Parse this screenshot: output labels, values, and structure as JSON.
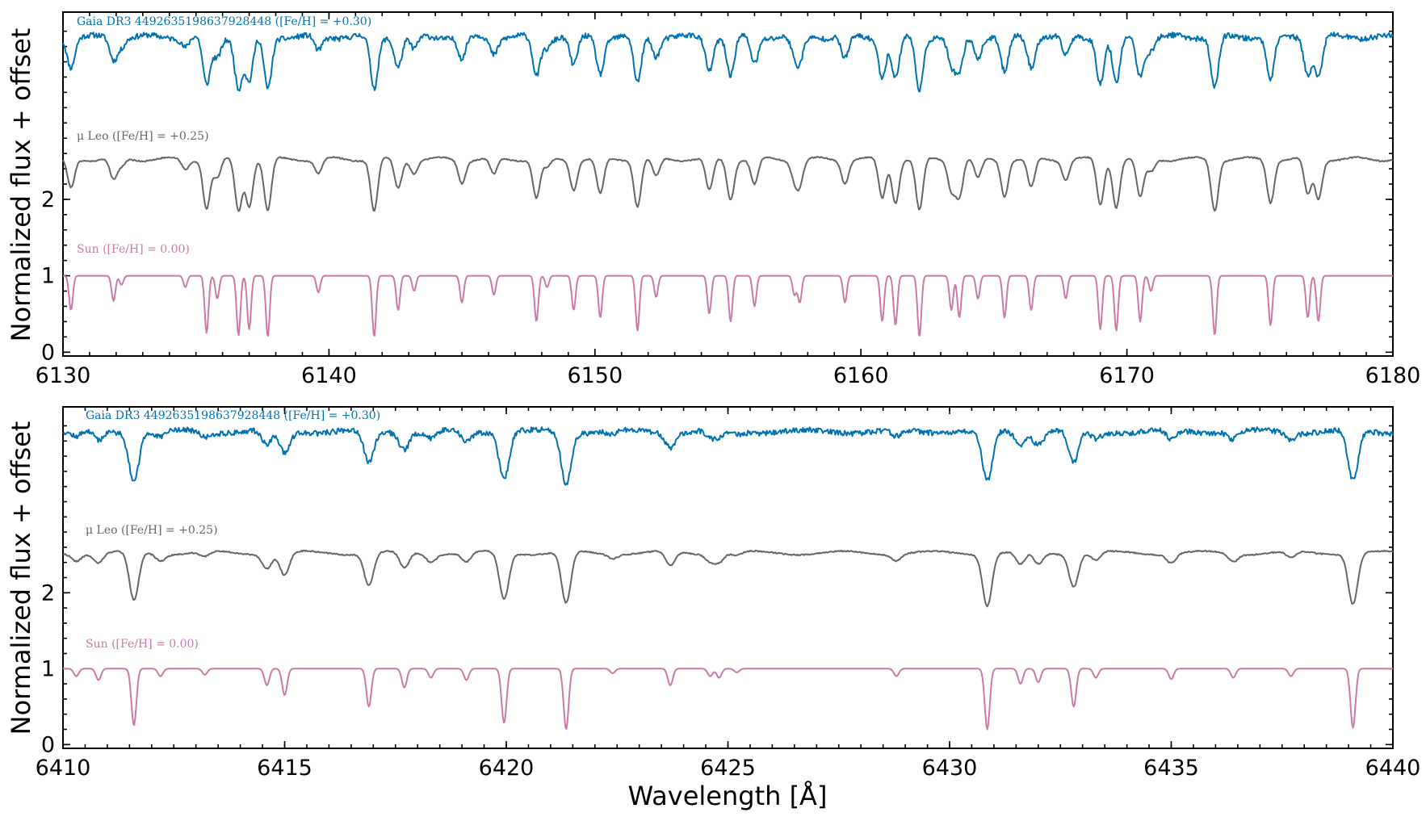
{
  "chart_data": [
    {
      "type": "line",
      "title": "",
      "xlabel": "",
      "ylabel": "Normalized flux + offset",
      "xlim": [
        6130,
        6180
      ],
      "ylim": [
        -0.05,
        4.45
      ],
      "xticks": [
        6130,
        6140,
        6150,
        6160,
        6170,
        6180
      ],
      "xtick_labels": [
        "6130",
        "6140",
        "6150",
        "6160",
        "6170",
        "6180"
      ],
      "yticks": [
        0,
        1,
        2
      ],
      "ytick_labels": [
        "0",
        "1",
        "2"
      ],
      "grid": false,
      "legend": "none",
      "series": [
        {
          "name": "Gaia DR3 4492635198637928448 ([Fe/H] = +0.30)",
          "color": "#0072b2",
          "offset": 3.0,
          "lines": [
            [
              6130.3,
              0.2
            ],
            [
              6131.9,
              0.18
            ],
            [
              6135.4,
              0.38
            ],
            [
              6136.6,
              0.52
            ],
            [
              6137.0,
              0.43
            ],
            [
              6137.7,
              0.52
            ],
            [
              6139.6,
              0.2
            ],
            [
              6141.7,
              0.45
            ],
            [
              6142.6,
              0.22
            ],
            [
              6143.2,
              0.25
            ],
            [
              6145.0,
              0.2
            ],
            [
              6146.2,
              0.2
            ],
            [
              6147.8,
              0.32
            ],
            [
              6149.2,
              0.2
            ],
            [
              6150.2,
              0.4
            ],
            [
              6151.6,
              0.42
            ],
            [
              6154.3,
              0.38
            ],
            [
              6155.1,
              0.32
            ],
            [
              6156.0,
              0.33
            ],
            [
              6157.5,
              0.2
            ],
            [
              6159.4,
              0.2
            ],
            [
              6160.8,
              0.35
            ],
            [
              6161.3,
              0.38
            ],
            [
              6162.2,
              0.53
            ],
            [
              6163.4,
              0.25
            ],
            [
              6163.7,
              0.4
            ],
            [
              6165.4,
              0.33
            ],
            [
              6166.4,
              0.3
            ],
            [
              6167.7,
              0.25
            ],
            [
              6169.0,
              0.37
            ],
            [
              6169.6,
              0.4
            ],
            [
              6170.5,
              0.3
            ],
            [
              6173.3,
              0.47
            ],
            [
              6175.4,
              0.3
            ],
            [
              6176.8,
              0.35
            ],
            [
              6177.2,
              0.25
            ]
          ],
          "note_levels": "continuum near 4.15"
        },
        {
          "name": "μ Leo ([Fe/H] = +0.25)",
          "color": "#666666",
          "offset": 1.5,
          "continuum": 2.5
        },
        {
          "name": "Sun ([Fe/H] = 0.00)",
          "color": "#cc79a7",
          "offset": 0.0,
          "continuum": 1.0
        }
      ]
    },
    {
      "type": "line",
      "title": "",
      "xlabel": "Wavelength [Å]",
      "ylabel": "Normalized flux + offset",
      "xlim": [
        6410,
        6440
      ],
      "ylim": [
        -0.05,
        4.45
      ],
      "xticks": [
        6410,
        6415,
        6420,
        6425,
        6430,
        6435,
        6440
      ],
      "xtick_labels": [
        "6410",
        "6415",
        "6420",
        "6425",
        "6430",
        "6435",
        "6440"
      ],
      "yticks": [
        0,
        1,
        2
      ],
      "ytick_labels": [
        "0",
        "1",
        "2"
      ],
      "grid": false,
      "legend": "none",
      "series": [
        {
          "name": "Gaia DR3 4492635198637928448 ([Fe/H] = +0.30)",
          "color": "#0072b2",
          "offset": 3.0
        },
        {
          "name": "μ Leo ([Fe/H] = +0.25)",
          "color": "#666666",
          "offset": 1.5
        },
        {
          "name": "Sun ([Fe/H] = 0.00)",
          "color": "#cc79a7",
          "offset": 0.0
        }
      ]
    }
  ],
  "labels": {
    "top": {
      "gaia": "Gaia DR3 4492635198637928448 ([Fe/H] = +0.30)",
      "muleo": "μ Leo ([Fe/H] = +0.25)",
      "sun": "Sun ([Fe/H] = 0.00)"
    },
    "bottom": {
      "gaia": "Gaia DR3 4492635198637928448 ([Fe/H] = +0.30)",
      "muleo": "μ Leo ([Fe/H] = +0.25)",
      "sun": "Sun ([Fe/H] = 0.00)"
    },
    "ylabel_top": "Normalized flux + offset",
    "ylabel_bottom": "Normalized flux + offset",
    "xlabel": "Wavelength [Å]"
  },
  "line_lists": {
    "top": [
      [
        6130.3,
        0.45
      ],
      [
        6131.9,
        0.33
      ],
      [
        6132.2,
        0.12
      ],
      [
        6134.6,
        0.15
      ],
      [
        6135.4,
        0.75
      ],
      [
        6135.8,
        0.3
      ],
      [
        6136.6,
        0.78
      ],
      [
        6137.0,
        0.7
      ],
      [
        6137.7,
        0.8
      ],
      [
        6139.6,
        0.22
      ],
      [
        6141.7,
        0.8
      ],
      [
        6142.6,
        0.45
      ],
      [
        6143.2,
        0.2
      ],
      [
        6145.0,
        0.35
      ],
      [
        6146.2,
        0.25
      ],
      [
        6147.8,
        0.6
      ],
      [
        6148.2,
        0.15
      ],
      [
        6149.2,
        0.45
      ],
      [
        6150.2,
        0.55
      ],
      [
        6151.6,
        0.72
      ],
      [
        6152.3,
        0.28
      ],
      [
        6154.3,
        0.5
      ],
      [
        6155.1,
        0.6
      ],
      [
        6156.0,
        0.4
      ],
      [
        6157.5,
        0.25
      ],
      [
        6157.7,
        0.35
      ],
      [
        6159.4,
        0.35
      ],
      [
        6160.8,
        0.6
      ],
      [
        6161.3,
        0.65
      ],
      [
        6162.2,
        0.8
      ],
      [
        6163.4,
        0.45
      ],
      [
        6163.7,
        0.55
      ],
      [
        6164.4,
        0.3
      ],
      [
        6165.4,
        0.55
      ],
      [
        6166.4,
        0.45
      ],
      [
        6167.7,
        0.3
      ],
      [
        6169.0,
        0.7
      ],
      [
        6169.6,
        0.72
      ],
      [
        6170.5,
        0.6
      ],
      [
        6170.9,
        0.2
      ],
      [
        6173.3,
        0.78
      ],
      [
        6175.4,
        0.65
      ],
      [
        6176.8,
        0.55
      ],
      [
        6177.2,
        0.6
      ]
    ],
    "bottom": [
      [
        6410.3,
        0.1
      ],
      [
        6410.8,
        0.15
      ],
      [
        6411.6,
        0.75
      ],
      [
        6412.2,
        0.1
      ],
      [
        6413.2,
        0.08
      ],
      [
        6414.6,
        0.22
      ],
      [
        6415.0,
        0.35
      ],
      [
        6416.9,
        0.5
      ],
      [
        6417.7,
        0.25
      ],
      [
        6418.3,
        0.12
      ],
      [
        6419.1,
        0.15
      ],
      [
        6419.95,
        0.72
      ],
      [
        6421.35,
        0.8
      ],
      [
        6422.4,
        0.06
      ],
      [
        6423.7,
        0.22
      ],
      [
        6424.6,
        0.1
      ],
      [
        6424.8,
        0.12
      ],
      [
        6425.2,
        0.05
      ],
      [
        6428.8,
        0.1
      ],
      [
        6430.85,
        0.8
      ],
      [
        6431.6,
        0.2
      ],
      [
        6432.0,
        0.18
      ],
      [
        6432.8,
        0.5
      ],
      [
        6433.3,
        0.12
      ],
      [
        6435.0,
        0.14
      ],
      [
        6436.4,
        0.12
      ],
      [
        6437.7,
        0.1
      ],
      [
        6439.1,
        0.78
      ]
    ]
  }
}
